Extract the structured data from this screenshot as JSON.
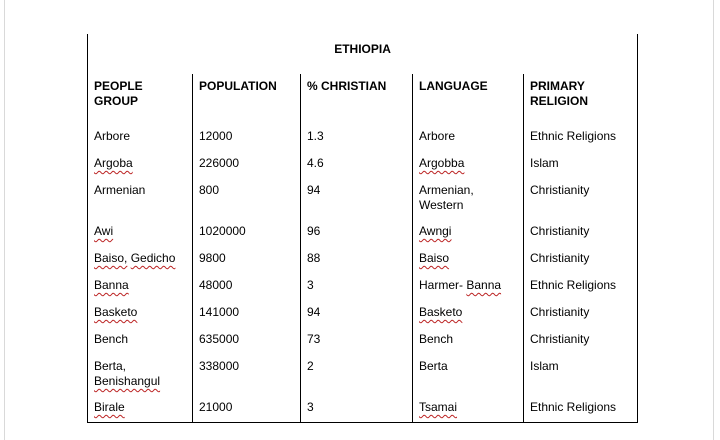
{
  "document": {
    "title": "ETHIOPIA",
    "columns": [
      "PEOPLE GROUP",
      "POPULATION",
      "% CHRISTIAN",
      "LANGUAGE",
      "PRIMARY RELIGION"
    ],
    "rows": [
      {
        "cells": [
          [
            {
              "t": "Arbore"
            }
          ],
          [
            {
              "t": "12000"
            }
          ],
          [
            {
              "t": "1.3"
            }
          ],
          [
            {
              "t": "Arbore"
            }
          ],
          [
            {
              "t": "Ethnic Religions"
            }
          ]
        ]
      },
      {
        "cells": [
          [
            {
              "t": "Argoba",
              "sq": true
            }
          ],
          [
            {
              "t": "226000"
            }
          ],
          [
            {
              "t": "4.6"
            }
          ],
          [
            {
              "t": "Argobba",
              "sq": true
            }
          ],
          [
            {
              "t": "Islam"
            }
          ]
        ]
      },
      {
        "cells": [
          [
            {
              "t": "Armenian"
            }
          ],
          [
            {
              "t": "800"
            }
          ],
          [
            {
              "t": "94"
            }
          ],
          [
            {
              "t": "Armenian, Western"
            }
          ],
          [
            {
              "t": "Christianity"
            }
          ]
        ]
      },
      {
        "cells": [
          [
            {
              "t": "Awi",
              "sq": true
            }
          ],
          [
            {
              "t": "1020000"
            }
          ],
          [
            {
              "t": "96"
            }
          ],
          [
            {
              "t": "Awngi",
              "sq": true
            }
          ],
          [
            {
              "t": "Christianity"
            }
          ]
        ]
      },
      {
        "cells": [
          [
            {
              "t": "Baiso,",
              "sq": true
            },
            {
              "t": " "
            },
            {
              "t": "Gedicho",
              "sq": true
            }
          ],
          [
            {
              "t": "9800"
            }
          ],
          [
            {
              "t": "88"
            }
          ],
          [
            {
              "t": "Baiso",
              "sq": true
            }
          ],
          [
            {
              "t": "Christianity"
            }
          ]
        ]
      },
      {
        "cells": [
          [
            {
              "t": "Banna",
              "sq": true
            }
          ],
          [
            {
              "t": "48000"
            }
          ],
          [
            {
              "t": "3"
            }
          ],
          [
            {
              "t": "Harmer- "
            },
            {
              "t": "Banna",
              "sq": true
            }
          ],
          [
            {
              "t": "Ethnic Religions"
            }
          ]
        ]
      },
      {
        "cells": [
          [
            {
              "t": "Basketo",
              "sq": true
            }
          ],
          [
            {
              "t": "141000"
            }
          ],
          [
            {
              "t": "94"
            }
          ],
          [
            {
              "t": "Basketo",
              "sq": true
            }
          ],
          [
            {
              "t": "Christianity"
            }
          ]
        ]
      },
      {
        "cells": [
          [
            {
              "t": "Bench"
            }
          ],
          [
            {
              "t": "635000"
            }
          ],
          [
            {
              "t": "73"
            }
          ],
          [
            {
              "t": "Bench"
            }
          ],
          [
            {
              "t": "Christianity"
            }
          ]
        ]
      },
      {
        "cells": [
          [
            {
              "t": "Berta, "
            },
            {
              "t": "Benishangul",
              "sq": true
            }
          ],
          [
            {
              "t": "338000"
            }
          ],
          [
            {
              "t": "2"
            }
          ],
          [
            {
              "t": "Berta"
            }
          ],
          [
            {
              "t": "Islam"
            }
          ]
        ]
      },
      {
        "cells": [
          [
            {
              "t": "Birale",
              "sq": true
            }
          ],
          [
            {
              "t": "21000"
            }
          ],
          [
            {
              "t": "3"
            }
          ],
          [
            {
              "t": "Tsamai",
              "sq": true
            }
          ],
          [
            {
              "t": "Ethnic Religions"
            }
          ]
        ]
      }
    ],
    "colors": {
      "text": "#000000",
      "table_border": "#000000",
      "misspell_underline": "#bb2222",
      "page_edge": "#d9d9d9",
      "background": "#ffffff"
    }
  }
}
